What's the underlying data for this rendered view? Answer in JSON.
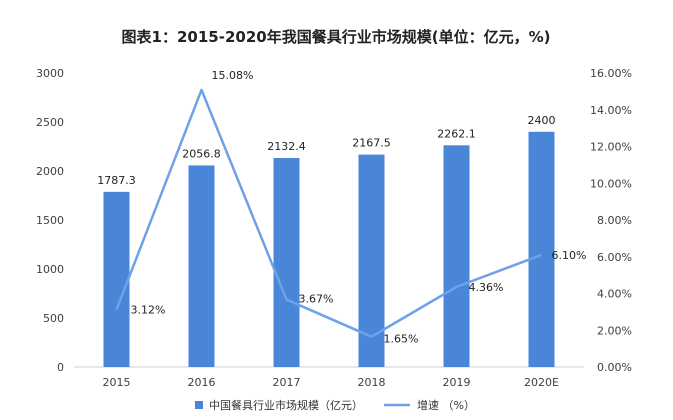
{
  "chart_data": {
    "type": "bar",
    "title": "图表1：2015-2020年我国餐具行业市场规模(单位：亿元，%)",
    "categories": [
      "2015",
      "2016",
      "2017",
      "2018",
      "2019",
      "2020E"
    ],
    "series": [
      {
        "name": "中国餐具行业市场规模（亿元）",
        "type": "bar",
        "axis": "left",
        "values": [
          1787.3,
          2056.8,
          2132.4,
          2167.5,
          2262.1,
          2400
        ],
        "labels": [
          "1787.3",
          "2056.8",
          "2132.4",
          "2167.5",
          "2262.1",
          "2400"
        ],
        "color": "#4A86D8"
      },
      {
        "name": "增速 （%）",
        "type": "line",
        "axis": "right",
        "values": [
          3.12,
          15.08,
          3.67,
          1.65,
          4.36,
          6.1
        ],
        "labels": [
          "3.12%",
          "15.08%",
          "3.67%",
          "1.65%",
          "4.36%",
          "6.10%"
        ],
        "color": "#6FA1E8"
      }
    ],
    "y_left": {
      "min": 0,
      "max": 3000,
      "ticks": [
        0,
        500,
        1000,
        1500,
        2000,
        2500,
        3000
      ],
      "tick_labels": [
        "0",
        "500",
        "1000",
        "1500",
        "2000",
        "2500",
        "3000"
      ]
    },
    "y_right": {
      "min": 0,
      "max": 16,
      "ticks": [
        0,
        2,
        4,
        6,
        8,
        10,
        12,
        14,
        16
      ],
      "tick_labels": [
        "0.00%",
        "2.00%",
        "4.00%",
        "6.00%",
        "8.00%",
        "10.00%",
        "12.00%",
        "14.00%",
        "16.00%"
      ]
    },
    "grid": false,
    "legend_position": "bottom-center",
    "xlabel": "",
    "ylabel": ""
  }
}
